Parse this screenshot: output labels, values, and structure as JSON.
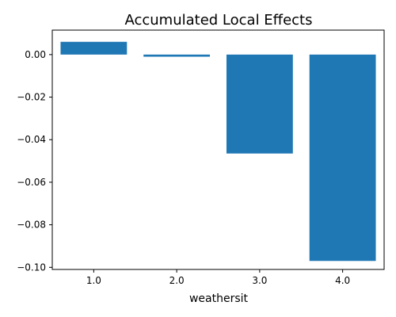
{
  "chart_data": {
    "type": "bar",
    "title": "Accumulated Local Effects",
    "xlabel": "weathersit",
    "ylabel": "",
    "categories": [
      "1.0",
      "2.0",
      "3.0",
      "4.0"
    ],
    "values": [
      0.006,
      -0.001,
      -0.0465,
      -0.097
    ],
    "ylim": [
      -0.101,
      0.0115
    ],
    "yticks": [
      0.0,
      -0.02,
      -0.04,
      -0.06,
      -0.08,
      -0.1
    ],
    "ytick_labels": [
      "0.00",
      "−0.02",
      "−0.04",
      "−0.06",
      "−0.08",
      "−0.10"
    ],
    "bar_color": "#1f77b4",
    "grid": false,
    "legend": "none"
  }
}
